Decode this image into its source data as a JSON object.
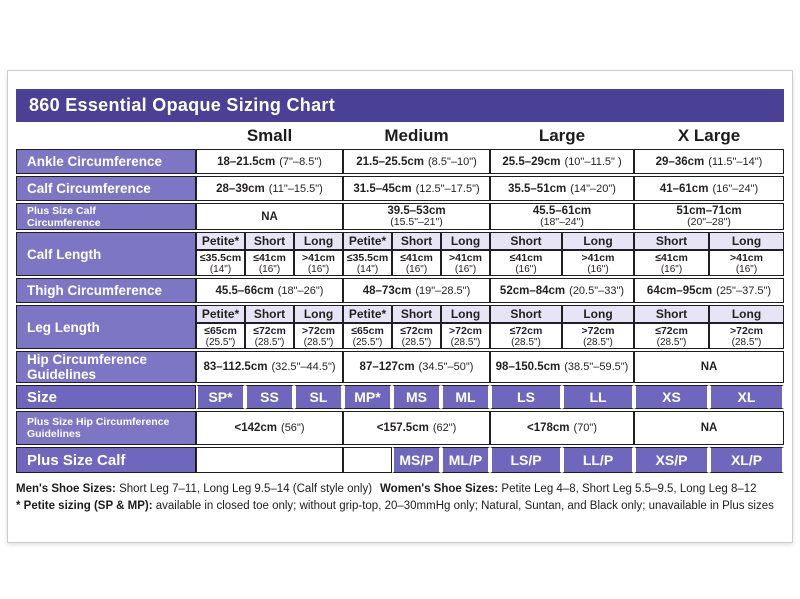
{
  "title": "860 Essential Opaque Sizing Chart",
  "size_headers": [
    "Small",
    "Medium",
    "Large",
    "X Large"
  ],
  "subheaders": [
    "Petite*",
    "Short",
    "Long",
    "Petite*",
    "Short",
    "Long",
    "Short",
    "Long",
    "Short",
    "Long"
  ],
  "rows": {
    "ankle": {
      "label": "Ankle Circumference",
      "values": [
        {
          "cm": "18–21.5cm",
          "in": "(7\"–8.5\")"
        },
        {
          "cm": "21.5–25.5cm",
          "in": "(8.5\"–10\")"
        },
        {
          "cm": "25.5–29cm",
          "in": "(10\"–11.5\" )"
        },
        {
          "cm": "29–36cm",
          "in": "(11.5\"–14\")"
        }
      ]
    },
    "calf": {
      "label": "Calf Circumference",
      "values": [
        {
          "cm": "28–39cm",
          "in": "(11\"–15.5\")"
        },
        {
          "cm": "31.5–45cm",
          "in": "(12.5\"–17.5\")"
        },
        {
          "cm": "35.5–51cm",
          "in": "(14\"–20\")"
        },
        {
          "cm": "41–61cm",
          "in": "(16\"–24\")"
        }
      ]
    },
    "plus_calf_circ": {
      "label": "Plus Size Calf Circumference",
      "na": "NA",
      "values": [
        {
          "cm": "39.5–53cm",
          "in": "(15.5\"–21\")"
        },
        {
          "cm": "45.5–61cm",
          "in": "(18\"–24\")"
        },
        {
          "cm": "51cm–71cm",
          "in": "(20\"–28\")"
        }
      ]
    },
    "calf_length": {
      "label": "Calf Length",
      "values": [
        {
          "cm": "≤35.5cm",
          "in": "(14\")"
        },
        {
          "cm": "≤41cm",
          "in": "(16\")"
        },
        {
          "cm": ">41cm",
          "in": "(16\")"
        },
        {
          "cm": "≤35.5cm",
          "in": "(14\")"
        },
        {
          "cm": "≤41cm",
          "in": "(16\")"
        },
        {
          "cm": ">41cm",
          "in": "(16\")"
        },
        {
          "cm": "≤41cm",
          "in": "(16\")"
        },
        {
          "cm": ">41cm",
          "in": "(16\")"
        },
        {
          "cm": "≤41cm",
          "in": "(16\")"
        },
        {
          "cm": ">41cm",
          "in": "(16\")"
        }
      ]
    },
    "thigh": {
      "label": "Thigh Circumference",
      "values": [
        {
          "cm": "45.5–66cm",
          "in": "(18\"–26\")"
        },
        {
          "cm": "48–73cm",
          "in": "(19\"–28.5\")"
        },
        {
          "cm": "52cm–84cm",
          "in": "(20.5\"–33\")"
        },
        {
          "cm": "64cm–95cm",
          "in": "(25\"–37.5\")"
        }
      ]
    },
    "leg_length": {
      "label": "Leg Length",
      "values": [
        {
          "cm": "≤65cm",
          "in": "(25.5\")"
        },
        {
          "cm": "≤72cm",
          "in": "(28.5\")"
        },
        {
          "cm": ">72cm",
          "in": "(28.5\")"
        },
        {
          "cm": "≤65cm",
          "in": "(25.5\")"
        },
        {
          "cm": "≤72cm",
          "in": "(28.5\")"
        },
        {
          "cm": ">72cm",
          "in": "(28.5\")"
        },
        {
          "cm": "≤72cm",
          "in": "(28.5\")"
        },
        {
          "cm": ">72cm",
          "in": "(28.5\")"
        },
        {
          "cm": "≤72cm",
          "in": "(28.5\")"
        },
        {
          "cm": ">72cm",
          "in": "(28.5\")"
        }
      ]
    },
    "hip": {
      "label": "Hip Circumference Guidelines",
      "na": "NA",
      "values": [
        {
          "cm": "83–112.5cm",
          "in": "(32.5\"–44.5\")"
        },
        {
          "cm": "87–127cm",
          "in": "(34.5\"–50\")"
        },
        {
          "cm": "98–150.5cm",
          "in": "(38.5\"–59.5\")"
        }
      ]
    },
    "size": {
      "label": "Size",
      "values": [
        "SP*",
        "SS",
        "SL",
        "MP*",
        "MS",
        "ML",
        "LS",
        "LL",
        "XS",
        "XL"
      ]
    },
    "plus_hip": {
      "label": "Plus Size Hip Circumference Guidelines",
      "na": "NA",
      "values": [
        {
          "cm": "<142cm",
          "in": "(56\")"
        },
        {
          "cm": "<157.5cm",
          "in": "(62\")"
        },
        {
          "cm": "<178cm",
          "in": "(70\")"
        }
      ]
    },
    "plus_calf": {
      "label": "Plus Size Calf",
      "values": [
        "MS/P",
        "ML/P",
        "LS/P",
        "LL/P",
        "XS/P",
        "XL/P"
      ]
    }
  },
  "footer": {
    "mens_label": "Men's Shoe Sizes:",
    "mens_text": " Short Leg 7–11, Long Leg 9.5–14 (Calf style only)",
    "womens_label": "Women's Shoe Sizes:",
    "womens_text": " Petite Leg 4–8, Short Leg 5.5–9.5, Long Leg 8–12",
    "petite_label": "* Petite sizing (SP & MP):",
    "petite_text": " available in closed toe only; without grip-top, 20–30mmHg only; Natural, Suntan, and Black only; unavailable in Plus sizes"
  },
  "colors": {
    "title_bar_bg": "#4a4095",
    "row_label_bg": "#7d76c5",
    "dark_row_bg": "#6e67bd",
    "subheader_bg": "#e7e5f5",
    "grid_border": "#1f1f23",
    "card_border": "#cccccc",
    "text_white": "#ffffff",
    "text_dark": "#231f20"
  }
}
